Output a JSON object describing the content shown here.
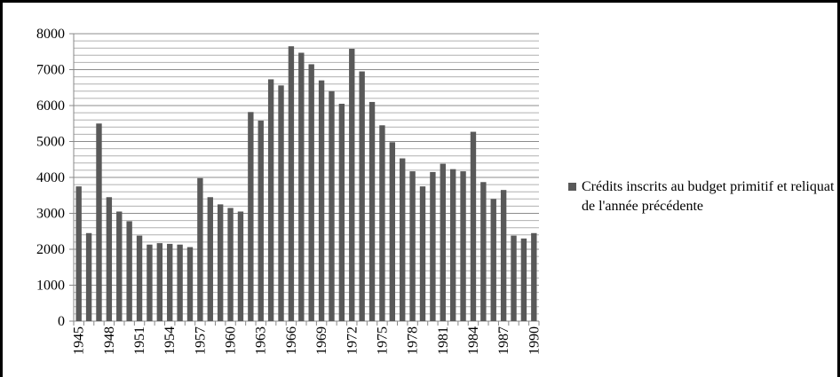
{
  "chart_data": {
    "type": "bar",
    "categories": [
      "1945",
      null,
      null,
      "1948",
      null,
      null,
      "1951",
      null,
      null,
      "1954",
      null,
      null,
      "1957",
      null,
      null,
      "1960",
      null,
      null,
      "1963",
      null,
      null,
      "1966",
      null,
      null,
      "1969",
      null,
      null,
      "1972",
      null,
      null,
      "1975",
      null,
      null,
      "1978",
      null,
      null,
      "1981",
      null,
      null,
      "1984",
      null,
      null,
      "1987",
      null,
      null,
      "1990"
    ],
    "series": [
      {
        "name": "Crédits inscrits au budget primitif et reliquat de l'année précédente",
        "color": "#595959",
        "values": [
          3750,
          2450,
          5500,
          3450,
          3050,
          2780,
          2380,
          2130,
          2170,
          2150,
          2130,
          2060,
          3980,
          3450,
          3250,
          3150,
          3050,
          5820,
          5580,
          6730,
          6560,
          7650,
          7470,
          7150,
          6700,
          6400,
          6050,
          7580,
          6950,
          6100,
          5450,
          4980,
          4530,
          4170,
          3750,
          4150,
          4380,
          4230,
          4170,
          5270,
          3870,
          3400,
          3650,
          2380,
          2300,
          2450
        ]
      }
    ],
    "ylim": [
      0,
      8000
    ],
    "yticks": [
      0,
      1000,
      2000,
      3000,
      4000,
      5000,
      6000,
      7000,
      8000
    ],
    "minor_yticks": [
      200,
      400,
      600,
      800,
      1200,
      1400,
      1600,
      1800,
      2200,
      2400,
      2600,
      2800,
      3200,
      3400,
      3600,
      3800,
      4200,
      4400,
      4600,
      4800,
      5200,
      5400,
      5600,
      5800,
      6200,
      6400,
      6600,
      6800,
      7200,
      7400,
      7600,
      7800
    ],
    "grid": true,
    "legend": "right"
  }
}
